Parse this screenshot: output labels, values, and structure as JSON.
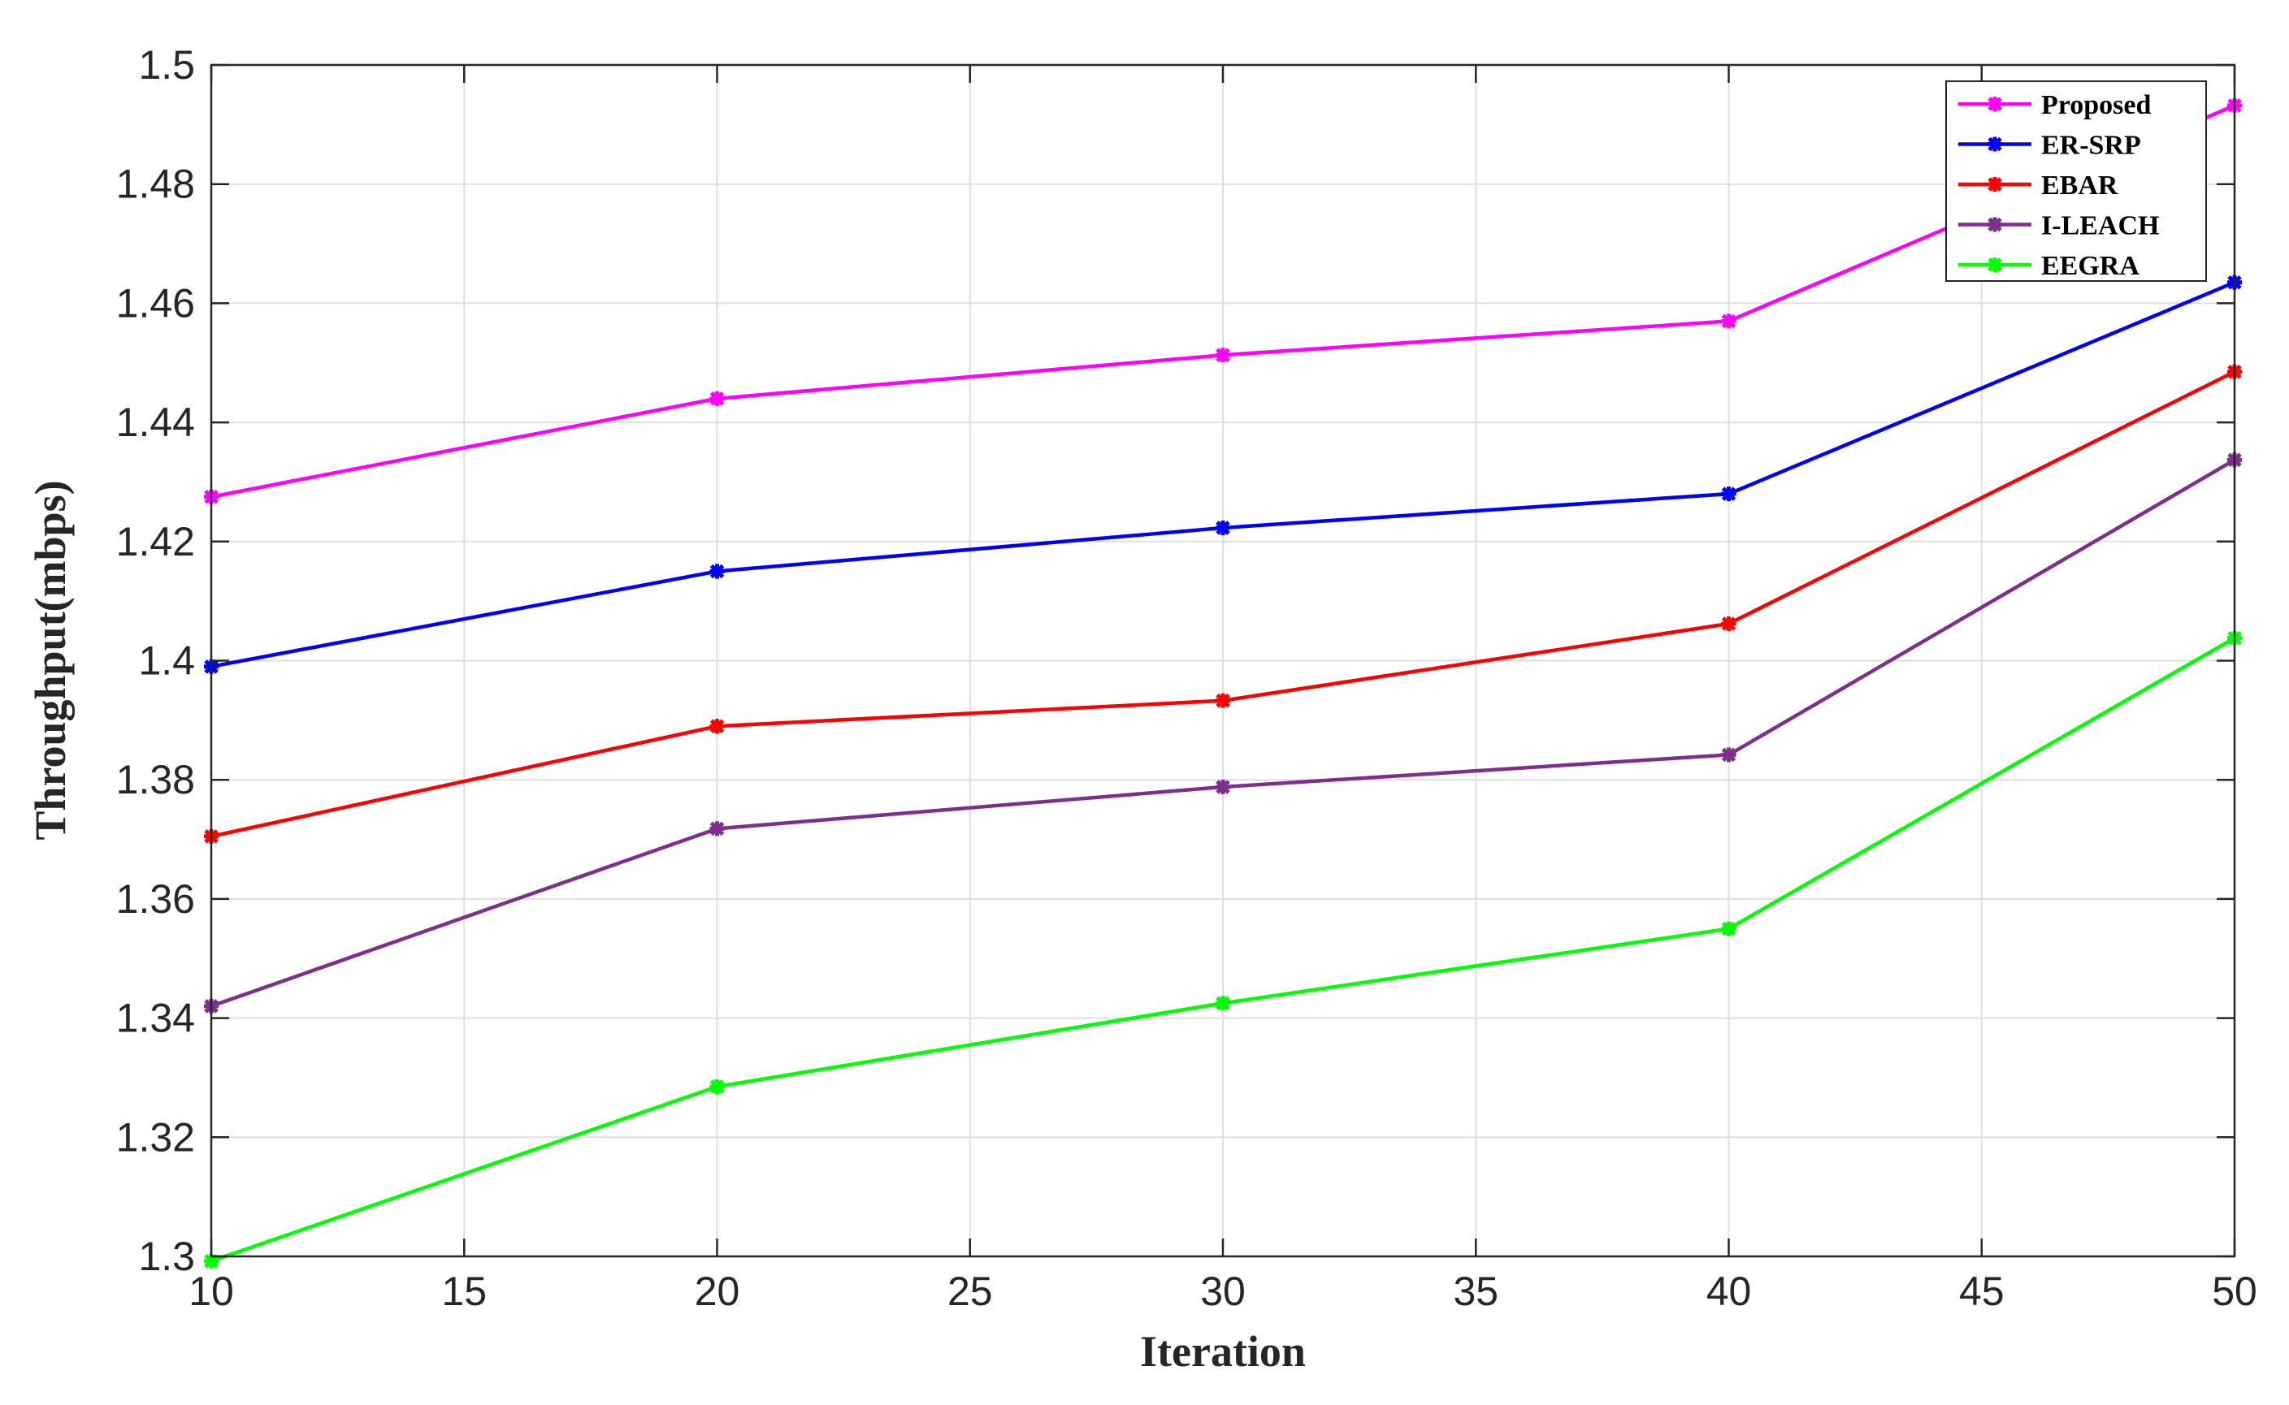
{
  "chart_data": {
    "type": "line",
    "title": "",
    "xlabel": "Iteration",
    "ylabel": "Throughput(mbps)",
    "xlim": [
      10,
      50
    ],
    "ylim": [
      1.3,
      1.5
    ],
    "grid": true,
    "legend_position": "top-right",
    "x_ticks": [
      "10",
      "15",
      "20",
      "25",
      "30",
      "35",
      "40",
      "45",
      "50"
    ],
    "y_ticks": [
      "1.3",
      "1.32",
      "1.34",
      "1.36",
      "1.38",
      "1.4",
      "1.42",
      "1.44",
      "1.46",
      "1.48",
      "1.5"
    ],
    "x": [
      10,
      20,
      30,
      40,
      50
    ],
    "series": [
      {
        "name": "Proposed",
        "color": "#ff00ff",
        "values": [
          1.4275,
          1.444,
          1.4513,
          1.457,
          1.4932
        ]
      },
      {
        "name": "ER-SRP",
        "color": "#0000ff",
        "values": [
          1.399,
          1.415,
          1.4223,
          1.428,
          1.4635
        ]
      },
      {
        "name": "EBAR",
        "color": "#ff0000",
        "values": [
          1.3705,
          1.389,
          1.3933,
          1.4062,
          1.4485
        ]
      },
      {
        "name": "I-LEACH",
        "color": "#7e2f8e",
        "values": [
          1.342,
          1.3718,
          1.3788,
          1.3842,
          1.4337
        ]
      },
      {
        "name": "EEGRA",
        "color": "#00ff00",
        "values": [
          1.2992,
          1.3285,
          1.3425,
          1.355,
          1.4038
        ]
      }
    ]
  }
}
